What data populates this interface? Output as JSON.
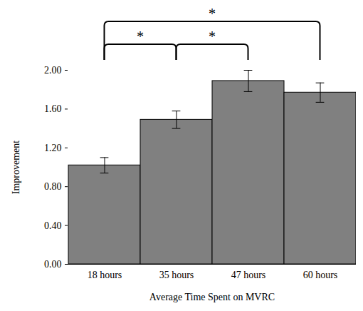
{
  "chart_data": {
    "type": "bar",
    "x_label": "Average Time Spent on MVRC",
    "y_label": "Improvement",
    "categories": [
      "18 hours",
      "35 hours",
      "47 hours",
      "60 hours"
    ],
    "values": [
      1.02,
      1.49,
      1.89,
      1.77
    ],
    "errors": [
      0.08,
      0.09,
      0.11,
      0.1
    ],
    "color": "#808080",
    "ylim": [
      0,
      2
    ],
    "yticks": [
      {
        "value": 0,
        "label": "0.00"
      },
      {
        "value": 0.4,
        "label": "0.40"
      },
      {
        "value": 0.8,
        "label": "0.80"
      },
      {
        "value": 1.2,
        "label": "1.20"
      },
      {
        "value": 1.6,
        "label": "1.60"
      },
      {
        "value": 2,
        "label": "2.00"
      }
    ],
    "grid": false,
    "comparisons": [
      {
        "from": "18 hours",
        "to": "35 hours",
        "label": "*"
      },
      {
        "from": "35 hours",
        "to": "47 hours",
        "label": "*"
      },
      {
        "from": "18 hours",
        "to": "60 hours",
        "label": "*"
      }
    ]
  }
}
